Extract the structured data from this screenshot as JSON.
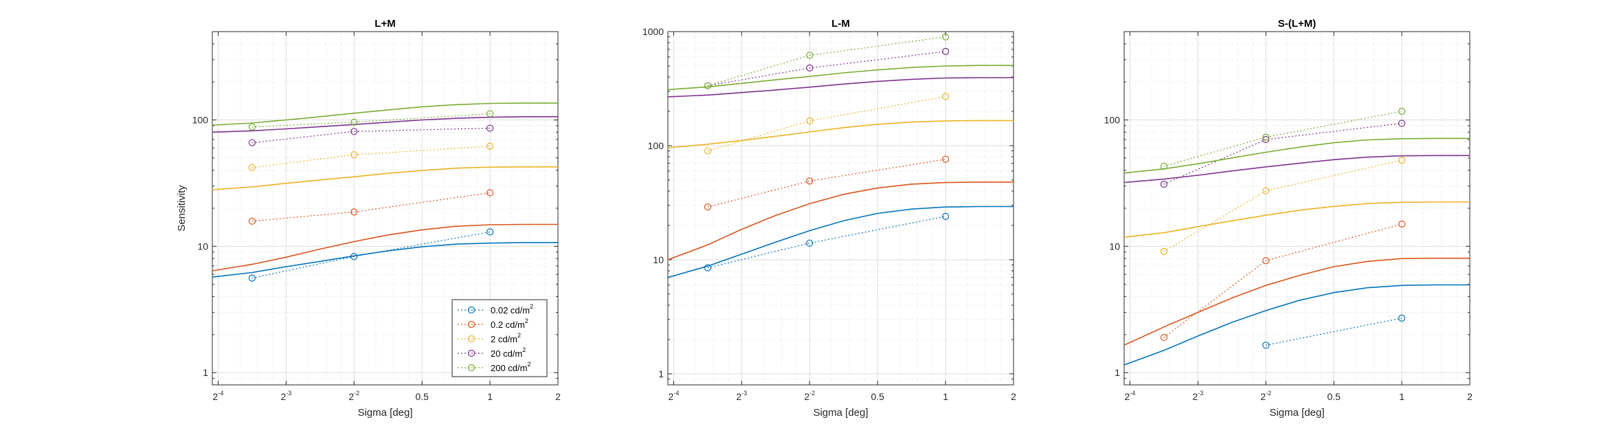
{
  "colors": {
    "0.02 cd/m2": "#0072BD",
    "0.2 cd/m2": "#D95319",
    "2 cd/m2": "#EDB120",
    "20 cd/m2": "#7E2F8E",
    "200 cd/m2": "#77AC30"
  },
  "legend": {
    "placement": "bottom-right of first panel",
    "entries": [
      {
        "base": "0.02 cd/m",
        "sup": "2"
      },
      {
        "base": "0.2 cd/m",
        "sup": "2"
      },
      {
        "base": "2 cd/m",
        "sup": "2"
      },
      {
        "base": "20 cd/m",
        "sup": "2"
      },
      {
        "base": "200 cd/m",
        "sup": "2"
      }
    ]
  },
  "chart_data": [
    {
      "type": "line",
      "title": "L+M",
      "xlabel": "Sigma [deg]",
      "ylabel": "Sensitivity",
      "xscale": "log2",
      "yscale": "log10",
      "xlim": [
        0.0589,
        2
      ],
      "ylim": [
        0.8,
        500
      ],
      "xticks": [
        0.0625,
        0.125,
        0.25,
        0.5,
        1,
        2
      ],
      "xtick_labels": [
        {
          "base": "2",
          "sup": "-4"
        },
        {
          "base": "2",
          "sup": "-3"
        },
        {
          "base": "2",
          "sup": "-2"
        },
        {
          "base": "0.5",
          "sup": ""
        },
        {
          "base": "1",
          "sup": ""
        },
        {
          "base": "2",
          "sup": ""
        }
      ],
      "yticks": [
        1,
        10,
        100
      ],
      "ytick_labels": [
        "1",
        "10",
        "100"
      ],
      "grid": true,
      "series": [
        {
          "name": "0.02 cd/m2",
          "measured_x": [
            0.0884,
            0.25,
            1
          ],
          "measured_y": [
            5.6,
            8.3,
            13
          ],
          "model_x": [
            0.0589,
            0.0884,
            0.125,
            0.177,
            0.25,
            0.354,
            0.5,
            0.707,
            1,
            1.414,
            2
          ],
          "model_y": [
            5.7,
            6.2,
            6.9,
            7.6,
            8.4,
            9.2,
            9.9,
            10.4,
            10.6,
            10.7,
            10.7
          ]
        },
        {
          "name": "0.2 cd/m2",
          "measured_x": [
            0.0884,
            0.25,
            1
          ],
          "measured_y": [
            15.8,
            18.7,
            26.5
          ],
          "model_x": [
            0.0589,
            0.0884,
            0.125,
            0.177,
            0.25,
            0.354,
            0.5,
            0.707,
            1,
            1.414,
            2
          ],
          "model_y": [
            6.4,
            7.2,
            8.2,
            9.5,
            10.9,
            12.3,
            13.5,
            14.4,
            14.8,
            14.9,
            14.9
          ]
        },
        {
          "name": "2 cd/m2",
          "measured_x": [
            0.0884,
            0.25,
            1
          ],
          "measured_y": [
            42,
            53,
            62
          ],
          "model_x": [
            0.0589,
            0.0884,
            0.125,
            0.177,
            0.25,
            0.354,
            0.5,
            0.707,
            1,
            1.414,
            2
          ],
          "model_y": [
            28,
            29.5,
            31.5,
            33.5,
            35.5,
            37.8,
            39.8,
            41.5,
            42.3,
            42.5,
            42.5
          ]
        },
        {
          "name": "20 cd/m2",
          "measured_x": [
            0.0884,
            0.25,
            1
          ],
          "measured_y": [
            66,
            81,
            86
          ],
          "model_x": [
            0.0589,
            0.0884,
            0.125,
            0.177,
            0.25,
            0.354,
            0.5,
            0.707,
            1,
            1.414,
            2
          ],
          "model_y": [
            80,
            82,
            85,
            88.5,
            92,
            96,
            100,
            103,
            105,
            106,
            106
          ]
        },
        {
          "name": "200 cd/m2",
          "measured_x": [
            0.0884,
            0.25,
            1
          ],
          "measured_y": [
            88,
            96,
            112
          ],
          "model_x": [
            0.0589,
            0.0884,
            0.125,
            0.177,
            0.25,
            0.354,
            0.5,
            0.707,
            1,
            1.414,
            2
          ],
          "model_y": [
            91,
            94.5,
            100,
            106,
            113,
            120,
            127,
            132,
            135,
            136,
            136
          ]
        }
      ]
    },
    {
      "type": "line",
      "title": "L-M",
      "xlabel": "Sigma [deg]",
      "ylabel": "",
      "xscale": "log2",
      "yscale": "log10",
      "xlim": [
        0.0589,
        2
      ],
      "ylim": [
        0.8,
        1000
      ],
      "xticks": [
        0.0625,
        0.125,
        0.25,
        0.5,
        1,
        2
      ],
      "xtick_labels": [
        {
          "base": "2",
          "sup": "-4"
        },
        {
          "base": "2",
          "sup": "-3"
        },
        {
          "base": "2",
          "sup": "-2"
        },
        {
          "base": "0.5",
          "sup": ""
        },
        {
          "base": "1",
          "sup": ""
        },
        {
          "base": "2",
          "sup": ""
        }
      ],
      "yticks": [
        1,
        10,
        100,
        1000
      ],
      "ytick_labels": [
        "1",
        "10",
        "100",
        "1000"
      ],
      "grid": true,
      "series": [
        {
          "name": "0.02 cd/m2",
          "measured_x": [
            0.0884,
            0.25,
            1
          ],
          "measured_y": [
            8.5,
            14,
            24
          ],
          "model_x": [
            0.0589,
            0.0884,
            0.125,
            0.177,
            0.25,
            0.354,
            0.5,
            0.707,
            1,
            1.414,
            2
          ],
          "model_y": [
            7,
            8.8,
            11.2,
            14.3,
            18,
            22,
            25.5,
            27.8,
            29,
            29.3,
            29.3
          ]
        },
        {
          "name": "0.2 cd/m2",
          "measured_x": [
            0.0884,
            0.25,
            1
          ],
          "measured_y": [
            29,
            49,
            76
          ],
          "model_x": [
            0.0589,
            0.0884,
            0.125,
            0.177,
            0.25,
            0.354,
            0.5,
            0.707,
            1,
            1.414,
            2
          ],
          "model_y": [
            10,
            13.5,
            18.5,
            24.5,
            31,
            37.5,
            42.5,
            46,
            47.5,
            48,
            48
          ]
        },
        {
          "name": "2 cd/m2",
          "measured_x": [
            0.0884,
            0.25,
            1
          ],
          "measured_y": [
            90,
            165,
            270
          ],
          "model_x": [
            0.0589,
            0.0884,
            0.125,
            0.177,
            0.25,
            0.354,
            0.5,
            0.707,
            1,
            1.414,
            2
          ],
          "model_y": [
            96,
            103,
            111,
            121,
            132,
            144,
            154,
            161,
            165,
            166,
            166
          ]
        },
        {
          "name": "20 cd/m2",
          "measured_x": [
            0.0884,
            0.25,
            1
          ],
          "measured_y": [
            335,
            480,
            670
          ],
          "model_x": [
            0.0589,
            0.0884,
            0.125,
            0.177,
            0.25,
            0.354,
            0.5,
            0.707,
            1,
            1.414,
            2
          ],
          "model_y": [
            268,
            278,
            292,
            308,
            326,
            347,
            366,
            382,
            392,
            395,
            395
          ]
        },
        {
          "name": "200 cd/m2",
          "measured_x": [
            0.0884,
            0.25,
            1
          ],
          "measured_y": [
            335,
            620,
            900
          ],
          "model_x": [
            0.0589,
            0.0884,
            0.125,
            0.177,
            0.25,
            0.354,
            0.5,
            0.707,
            1,
            1.414,
            2
          ],
          "model_y": [
            310,
            328,
            352,
            378,
            405,
            435,
            462,
            485,
            500,
            505,
            505
          ]
        }
      ]
    },
    {
      "type": "line",
      "title": "S-(L+M)",
      "xlabel": "Sigma [deg]",
      "ylabel": "",
      "xscale": "log2",
      "yscale": "log10",
      "xlim": [
        0.0589,
        2
      ],
      "ylim": [
        0.8,
        500
      ],
      "xticks": [
        0.0625,
        0.125,
        0.25,
        0.5,
        1,
        2
      ],
      "xtick_labels": [
        {
          "base": "2",
          "sup": "-4"
        },
        {
          "base": "2",
          "sup": "-3"
        },
        {
          "base": "2",
          "sup": "-2"
        },
        {
          "base": "0.5",
          "sup": ""
        },
        {
          "base": "1",
          "sup": ""
        },
        {
          "base": "2",
          "sup": ""
        }
      ],
      "yticks": [
        1,
        10,
        100
      ],
      "ytick_labels": [
        "1",
        "10",
        "100"
      ],
      "grid": true,
      "series": [
        {
          "name": "0.02 cd/m2",
          "measured_x": [
            0.25,
            1
          ],
          "measured_y": [
            1.65,
            2.7
          ],
          "model_x": [
            0.0589,
            0.0884,
            0.125,
            0.177,
            0.25,
            0.354,
            0.5,
            0.707,
            1,
            1.414,
            2
          ],
          "model_y": [
            1.15,
            1.5,
            1.95,
            2.5,
            3.1,
            3.75,
            4.3,
            4.7,
            4.9,
            4.95,
            4.95
          ]
        },
        {
          "name": "0.2 cd/m2",
          "measured_x": [
            0.0884,
            0.25,
            1
          ],
          "measured_y": [
            1.9,
            7.7,
            15
          ],
          "model_x": [
            0.0589,
            0.0884,
            0.125,
            0.177,
            0.25,
            0.354,
            0.5,
            0.707,
            1,
            1.414,
            2
          ],
          "model_y": [
            1.65,
            2.3,
            3.0,
            3.9,
            4.9,
            5.9,
            6.9,
            7.6,
            8,
            8.05,
            8.05
          ]
        },
        {
          "name": "2 cd/m2",
          "measured_x": [
            0.0884,
            0.25,
            1
          ],
          "measured_y": [
            9.1,
            27.5,
            48
          ],
          "model_x": [
            0.0589,
            0.0884,
            0.125,
            0.177,
            0.25,
            0.354,
            0.5,
            0.707,
            1,
            1.414,
            2
          ],
          "model_y": [
            11.8,
            12.8,
            14.3,
            15.9,
            17.6,
            19.3,
            20.7,
            21.8,
            22.3,
            22.4,
            22.4
          ]
        },
        {
          "name": "20 cd/m2",
          "measured_x": [
            0.0884,
            0.25,
            1
          ],
          "measured_y": [
            31,
            70,
            94
          ],
          "model_x": [
            0.0589,
            0.0884,
            0.125,
            0.177,
            0.25,
            0.354,
            0.5,
            0.707,
            1,
            1.414,
            2
          ],
          "model_y": [
            32,
            34,
            36.5,
            39.5,
            42.5,
            45.5,
            48.5,
            50.8,
            52,
            52.3,
            52.3
          ]
        },
        {
          "name": "200 cd/m2",
          "measured_x": [
            0.0884,
            0.25,
            1
          ],
          "measured_y": [
            43,
            73,
            117
          ],
          "model_x": [
            0.0589,
            0.0884,
            0.125,
            0.177,
            0.25,
            0.354,
            0.5,
            0.707,
            1,
            1.414,
            2
          ],
          "model_y": [
            38,
            41,
            45,
            50,
            55.5,
            61,
            66,
            69.5,
            71,
            71.5,
            71.5
          ]
        }
      ]
    }
  ]
}
